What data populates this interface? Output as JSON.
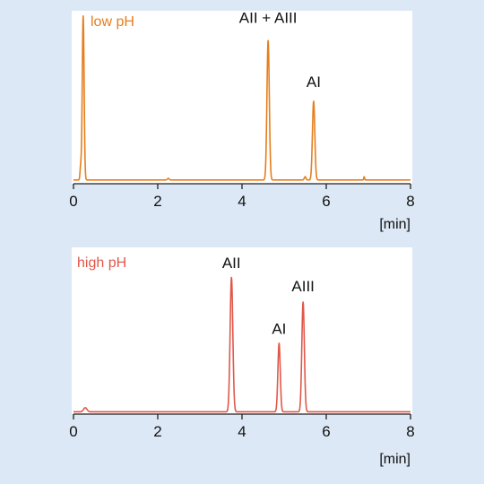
{
  "chart_data": [
    {
      "type": "line",
      "title": "",
      "condition_label": "low pH",
      "color": "#e67e1c",
      "xlabel": "[min]",
      "ylabel": "",
      "xlim": [
        0,
        8
      ],
      "x_ticks": [
        "0",
        "2",
        "4",
        "6",
        "8"
      ],
      "grid": false,
      "series": [
        {
          "name": "",
          "baseline": 0.012,
          "peaks": [
            {
              "t": 0.23,
              "h": 1.0,
              "w": 0.022
            },
            {
              "t": 0.17,
              "h": 0.08,
              "w": 0.015
            },
            {
              "t": 2.25,
              "h": 0.01,
              "w": 0.02
            },
            {
              "t": 4.62,
              "h": 0.85,
              "w": 0.028
            },
            {
              "t": 5.5,
              "h": 0.02,
              "w": 0.02
            },
            {
              "t": 5.7,
              "h": 0.48,
              "w": 0.028
            },
            {
              "t": 6.9,
              "h": 0.02,
              "w": 0.01
            }
          ]
        }
      ],
      "annotations": [
        {
          "text": "AII + AIII",
          "x": 4.62,
          "y": 0.97
        },
        {
          "text": "AI",
          "x": 5.7,
          "y": 0.58
        }
      ]
    },
    {
      "type": "line",
      "title": "",
      "condition_label": "high pH",
      "color": "#e0584a",
      "xlabel": "[min]",
      "ylabel": "",
      "xlim": [
        0,
        8
      ],
      "x_ticks": [
        "0",
        "2",
        "4",
        "6",
        "8"
      ],
      "grid": false,
      "series": [
        {
          "name": "",
          "baseline": 0.01,
          "peaks": [
            {
              "t": 0.28,
              "h": 0.03,
              "w": 0.04
            },
            {
              "t": 3.75,
              "h": 0.98,
              "w": 0.032
            },
            {
              "t": 4.88,
              "h": 0.5,
              "w": 0.028
            },
            {
              "t": 5.45,
              "h": 0.8,
              "w": 0.03
            }
          ]
        }
      ],
      "annotations": [
        {
          "text": "AII",
          "x": 3.75,
          "y": 1.06
        },
        {
          "text": "AI",
          "x": 4.88,
          "y": 0.58
        },
        {
          "text": "AIII",
          "x": 5.45,
          "y": 0.89
        }
      ]
    }
  ]
}
